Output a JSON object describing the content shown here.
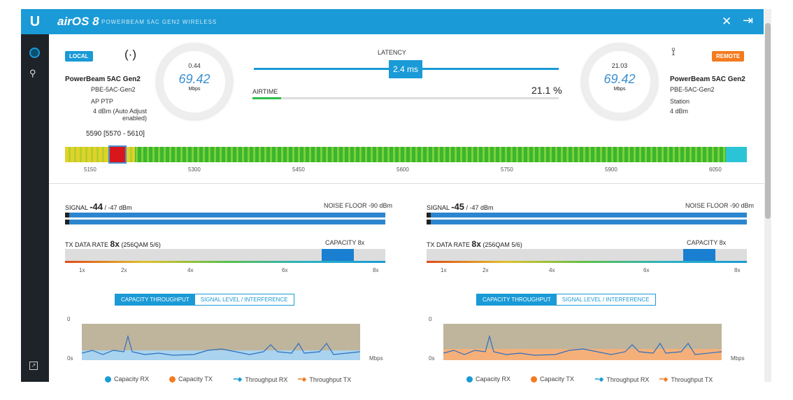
{
  "header": {
    "logo": "U",
    "product": "airOS 8",
    "subtitle": "POWERBEAM 5AC GEN2 WIRELESS"
  },
  "sidebar": {
    "items": [
      "dashboard",
      "tools"
    ]
  },
  "local": {
    "badge": "LOCAL",
    "device": "PowerBeam 5AC Gen2",
    "model": "PBE-5AC-Gen2",
    "mode": "AP PTP",
    "extra": "4 dBm (Auto Adjust enabled)",
    "gauge_top": "0.44",
    "gauge_value": "69.42",
    "gauge_unit": "Mbps"
  },
  "remote": {
    "badge": "REMOTE",
    "device": "PowerBeam 5AC Gen2",
    "model": "PBE-5AC-Gen2",
    "mode": "Station",
    "extra": "4 dBm",
    "gauge_top": "21.03",
    "gauge_value": "69.42",
    "gauge_unit": "Mbps"
  },
  "link": {
    "latency_label": "LATENCY",
    "latency": "2.4 ms",
    "airtime_label": "AIRTIME",
    "airtime": "21.1 %",
    "airtime_fraction": 0.211
  },
  "frequency": {
    "label": "5590 [5570 - 5610]",
    "ticks": [
      "5150",
      "5300",
      "5450",
      "5600",
      "5750",
      "5900",
      "6050"
    ]
  },
  "panels": [
    {
      "signal_label": "SIGNAL",
      "signal": "-44",
      "signal_detail": "/ -47 dBm",
      "noise": "NOISE FLOOR -90 dBm",
      "rate_label": "TX DATA RATE",
      "rate": "8x",
      "rate_detail": "(256QAM 5/6)",
      "rate_right": "CAPACITY 8x",
      "ticks": [
        "1x",
        "2x",
        "4x",
        "6x",
        "8x"
      ],
      "tab1": "CAPACITY THROUGHPUT",
      "tab2": "SIGNAL LEVEL / INTERFERENCE",
      "y_top": "0",
      "y_bot": "0s",
      "y_right": "Mbps"
    },
    {
      "signal_label": "SIGNAL",
      "signal": "-45",
      "signal_detail": "/ -47 dBm",
      "noise": "NOISE FLOOR -90 dBm",
      "rate_label": "TX DATA RATE",
      "rate": "8x",
      "rate_detail": "(256QAM 5/6)",
      "rate_right": "CAPACITY 8x",
      "ticks": [
        "1x",
        "2x",
        "4x",
        "6x",
        "8x"
      ],
      "tab1": "CAPACITY THROUGHPUT",
      "tab2": "SIGNAL LEVEL / INTERFERENCE",
      "y_top": "0",
      "y_bot": "0s",
      "y_right": "Mbps"
    }
  ],
  "legend": [
    "Capacity RX",
    "Capacity TX",
    "Throughput RX",
    "Throughput TX"
  ],
  "colors": {
    "accent": "#1a9ad6",
    "remote": "#f37b20",
    "sidebar": "#1e2329"
  }
}
